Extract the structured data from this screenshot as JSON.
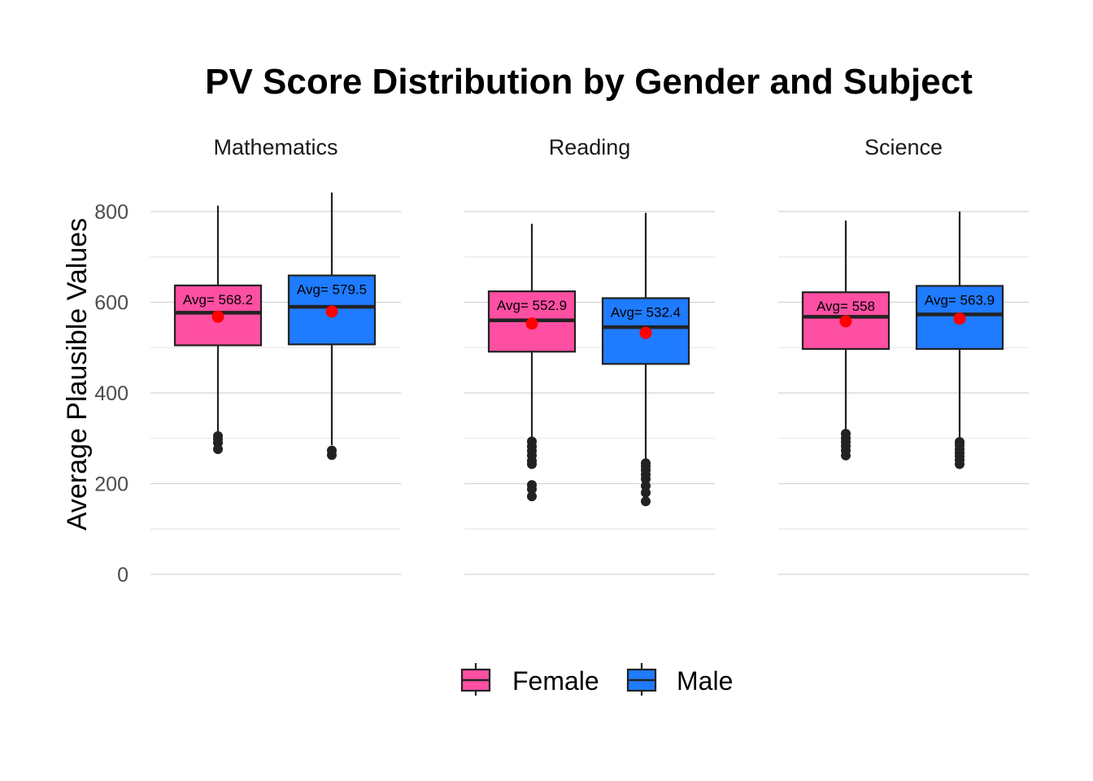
{
  "chart_data": {
    "type": "boxplot",
    "title": "PV Score Distribution by Gender and Subject",
    "xlabel": "",
    "ylabel": "Average Plausible Values",
    "ylim": [
      0,
      840
    ],
    "yticks": [
      0,
      200,
      400,
      600,
      800
    ],
    "grid": true,
    "legend_position": "bottom",
    "legend": [
      {
        "name": "Female",
        "color": "#FF4FA3"
      },
      {
        "name": "Male",
        "color": "#1F7BFF"
      }
    ],
    "mean_marker_color": "#FF0000",
    "panels": [
      {
        "facet": "Mathematics",
        "groups": [
          {
            "group": "Female",
            "min": 312,
            "q1": 505,
            "median": 577,
            "q3": 637,
            "max": 813,
            "mean": 568.2,
            "avg_label": "Avg= 568.2",
            "outliers": [
              305,
              298,
              290,
              276
            ]
          },
          {
            "group": "Male",
            "min": 285,
            "q1": 507,
            "median": 590,
            "q3": 659,
            "max": 842,
            "mean": 579.5,
            "avg_label": "Avg= 579.5",
            "outliers": [
              273,
              263
            ]
          }
        ]
      },
      {
        "facet": "Reading",
        "groups": [
          {
            "group": "Female",
            "min": 300,
            "q1": 491,
            "median": 560,
            "q3": 624,
            "max": 773,
            "mean": 552.9,
            "avg_label": "Avg= 552.9",
            "outliers": [
              293,
              282,
              272,
              262,
              250,
              243,
              197,
              188,
              172
            ]
          },
          {
            "group": "Male",
            "min": 252,
            "q1": 464,
            "median": 545,
            "q3": 609,
            "max": 797,
            "mean": 532.4,
            "avg_label": "Avg= 532.4",
            "outliers": [
              245,
              238,
              230,
              220,
              210,
              195,
              180,
              161
            ]
          }
        ]
      },
      {
        "facet": "Science",
        "groups": [
          {
            "group": "Female",
            "min": 318,
            "q1": 497,
            "median": 568,
            "q3": 622,
            "max": 780,
            "mean": 558,
            "avg_label": "Avg= 558",
            "outliers": [
              310,
              300,
              292,
              283,
              273,
              262
            ]
          },
          {
            "group": "Male",
            "min": 300,
            "q1": 497,
            "median": 573,
            "q3": 636,
            "max": 800,
            "mean": 563.9,
            "avg_label": "Avg= 563.9",
            "outliers": [
              292,
              285,
              276,
              268,
              260,
              252,
              243
            ]
          }
        ]
      }
    ]
  }
}
